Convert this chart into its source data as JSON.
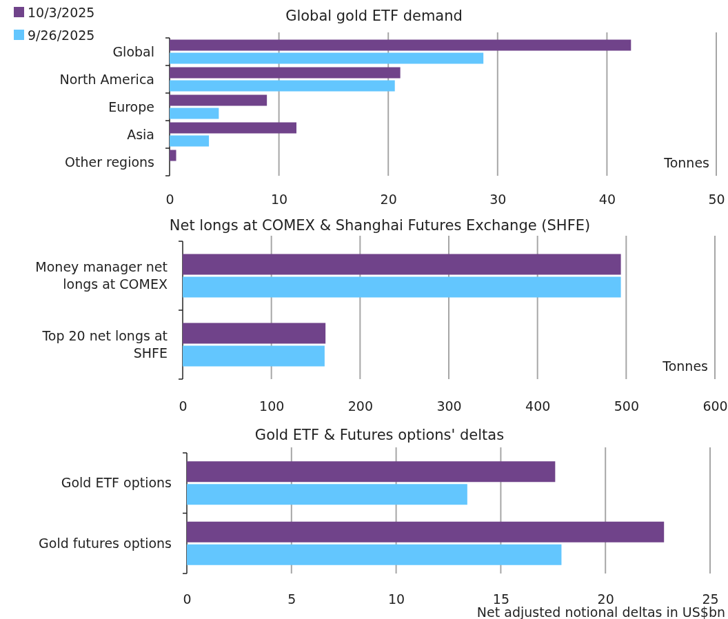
{
  "chart_data": [
    {
      "type": "bar",
      "orientation": "horizontal",
      "title": "Global gold ETF demand",
      "xlabel": "Tonnes",
      "categories": [
        "Global",
        "North America",
        "Europe",
        "Asia",
        "Other regions"
      ],
      "series": [
        {
          "name": "10/3/2025",
          "color": "#70438a",
          "values": [
            42.2,
            21.1,
            8.9,
            11.6,
            0.6
          ]
        },
        {
          "name": "9/26/2025",
          "color": "#63c6fe",
          "values": [
            28.7,
            20.6,
            4.5,
            3.6,
            0
          ]
        }
      ],
      "xlim": [
        0,
        50
      ],
      "xticks": [
        0,
        10,
        20,
        30,
        40,
        50
      ],
      "grid": "x",
      "legend": "top left"
    },
    {
      "type": "bar",
      "orientation": "horizontal",
      "title": "Net longs at COMEX & Shanghai Futures Exchange (SHFE)",
      "xlabel": "Tonnes",
      "categories": [
        "Money manager net longs at COMEX",
        "Top 20 net longs at SHFE"
      ],
      "series": [
        {
          "color": "#70438a",
          "values": [
            494,
            161
          ]
        },
        {
          "color": "#63c6fe",
          "values": [
            494,
            160
          ]
        }
      ],
      "xlim": [
        0,
        600
      ],
      "xticks": [
        0,
        100,
        200,
        300,
        400,
        500,
        600
      ],
      "grid": "x"
    },
    {
      "type": "bar",
      "orientation": "horizontal",
      "title": "Gold ETF & Futures options' deltas",
      "xlabel": "Net adjusted notional deltas in US$bn",
      "categories": [
        "Gold ETF options",
        "Gold futures options"
      ],
      "series": [
        {
          "color": "#70438a",
          "values": [
            17.6,
            22.8
          ]
        },
        {
          "color": "#63c6fe",
          "values": [
            13.4,
            17.9
          ]
        }
      ],
      "xlim": [
        0,
        25
      ],
      "xticks": [
        0,
        5,
        10,
        15,
        20,
        25
      ],
      "grid": "x"
    }
  ]
}
